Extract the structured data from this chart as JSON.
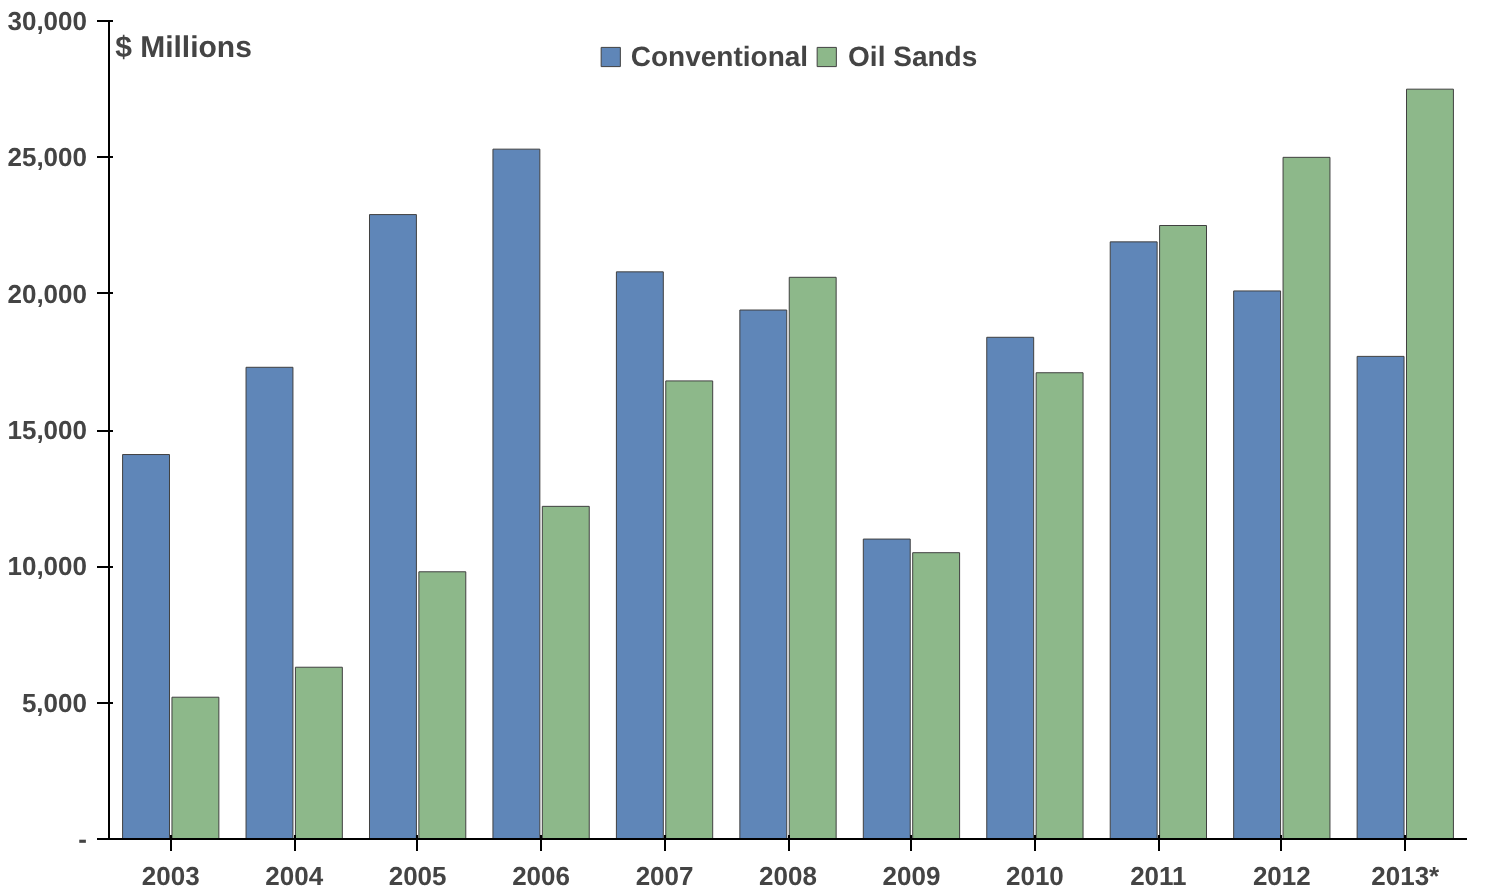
{
  "chart_data": {
    "type": "bar",
    "ylabel": "$ Millions",
    "categories": [
      "2003",
      "2004",
      "2005",
      "2006",
      "2007",
      "2008",
      "2009",
      "2010",
      "2011",
      "2012",
      "2013*"
    ],
    "series": [
      {
        "name": "Conventional",
        "color": "#5f86b8",
        "values": [
          14100,
          17300,
          22900,
          25300,
          20800,
          19400,
          11000,
          18400,
          21900,
          20100,
          17700
        ]
      },
      {
        "name": "Oil Sands",
        "color": "#8db88a",
        "values": [
          5200,
          6300,
          9800,
          12200,
          16800,
          20600,
          10500,
          17100,
          22500,
          25000,
          27500
        ]
      }
    ],
    "ylim": [
      0,
      30000
    ],
    "yticks": [
      {
        "value": 0,
        "label": "-"
      },
      {
        "value": 5000,
        "label": "5,000"
      },
      {
        "value": 10000,
        "label": "10,000"
      },
      {
        "value": 15000,
        "label": "15,000"
      },
      {
        "value": 20000,
        "label": "20,000"
      },
      {
        "value": 25000,
        "label": "25,000"
      },
      {
        "value": 30000,
        "label": "30,000"
      }
    ],
    "grid": false,
    "legend": "top"
  }
}
